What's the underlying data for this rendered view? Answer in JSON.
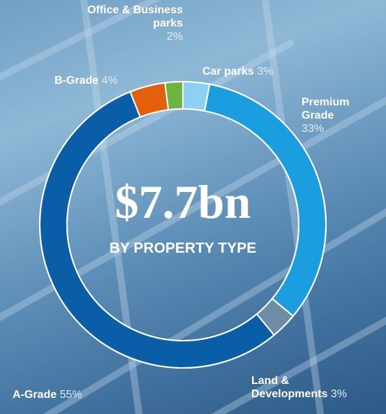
{
  "chart_data": {
    "type": "donut",
    "title": "$7.7bn",
    "subtitle": "BY PROPERTY TYPE",
    "categories": [
      "Car parks",
      "Premium Grade",
      "Land & Developments",
      "A-Grade",
      "B-Grade",
      "Office & Business parks"
    ],
    "values": [
      3,
      33,
      3,
      55,
      4,
      2
    ],
    "value_labels": [
      "3%",
      "33%",
      "3%",
      "55%",
      "4%",
      "2%"
    ],
    "colors": [
      "#8ecff5",
      "#1a9ee0",
      "#6e8ca3",
      "#0a5ea8",
      "#e35f0c",
      "#6cb33f"
    ]
  }
}
